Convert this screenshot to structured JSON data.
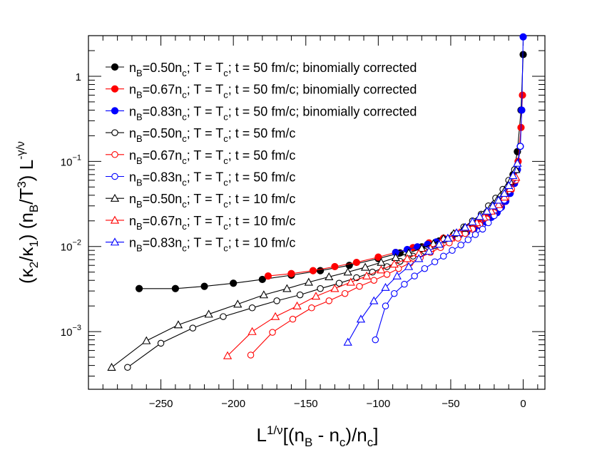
{
  "chart_data": {
    "type": "scatter",
    "title": "",
    "x_axis": {
      "label": {
        "pre": "L",
        "sup1": "1/ν",
        "mid": "[(n",
        "sub1": "B",
        "mid2": " - n",
        "sub2": "c",
        "mid3": ")/n",
        "sub3": "c",
        "post": "]"
      },
      "range": [
        -300,
        15
      ],
      "ticks": [
        -250,
        -200,
        -150,
        -100,
        -50,
        0
      ],
      "tick_labels": [
        "−250",
        "−200",
        "−150",
        "−100",
        "−50",
        "0"
      ]
    },
    "y_axis": {
      "label": {
        "p1": "(κ",
        "s1": "2",
        "p2": "/κ",
        "s2": "1",
        "p3": ") (n",
        "s3": "B",
        "p4": "/T",
        "sup1": "3",
        "p5": ") L",
        "sup2": "-γ/ν"
      },
      "scale": "log",
      "range": [
        0.00021,
        3.0
      ],
      "ticks": [
        0.001,
        0.01,
        0.1,
        1
      ],
      "tick_labels": [
        {
          "base": "10",
          "exp": "−3"
        },
        {
          "base": "10",
          "exp": "−2"
        },
        {
          "base": "10",
          "exp": "−1"
        },
        {
          "base": "1",
          "exp": ""
        }
      ]
    },
    "series": [
      {
        "name": "n_B=0.50n_c; T = T_c; t = 50 fm/c; binomially corrected",
        "legend": {
          "nb": "0.50",
          "t": "50",
          "tail": " fm/c; binomially corrected"
        },
        "color": "#000000",
        "marker": "circle-filled",
        "x": [
          -265,
          -240,
          -220,
          -200,
          -180,
          -160,
          -140,
          -120,
          -100,
          -85,
          -70,
          -58,
          -48,
          -40,
          -33,
          -27,
          -21,
          -16,
          -11,
          -7,
          -4,
          -1.5,
          0
        ],
        "y": [
          0.0032,
          0.0032,
          0.0034,
          0.0037,
          0.0041,
          0.0046,
          0.0052,
          0.006,
          0.0072,
          0.0084,
          0.0099,
          0.0116,
          0.0137,
          0.016,
          0.0188,
          0.022,
          0.027,
          0.034,
          0.046,
          0.07,
          0.13,
          0.4,
          1.8
        ]
      },
      {
        "name": "n_B=0.67n_c; T = T_c; t = 50 fm/c; binomially corrected",
        "legend": {
          "nb": "0.67",
          "t": "50",
          "tail": " fm/c; binomially corrected"
        },
        "color": "#ff0000",
        "marker": "circle-filled",
        "x": [
          -176,
          -160,
          -145,
          -130,
          -115,
          -100,
          -88,
          -76,
          -65,
          -55,
          -46,
          -38,
          -31,
          -25,
          -19,
          -14,
          -10,
          -6,
          -3.5,
          -1.5,
          -0.5
        ],
        "y": [
          0.0045,
          0.0048,
          0.0052,
          0.0058,
          0.0065,
          0.0075,
          0.0085,
          0.0097,
          0.011,
          0.0125,
          0.0143,
          0.0165,
          0.019,
          0.022,
          0.027,
          0.033,
          0.042,
          0.06,
          0.1,
          0.25,
          0.6
        ]
      },
      {
        "name": "n_B=0.83n_c; T = T_c; t = 50 fm/c; binomially corrected",
        "legend": {
          "nb": "0.83",
          "t": "50",
          "tail": " fm/c; binomially corrected"
        },
        "color": "#0000ff",
        "marker": "circle-filled",
        "x": [
          -88,
          -80,
          -73,
          -66,
          -60,
          -54,
          -49,
          -44,
          -39,
          -34,
          -30,
          -26,
          -22,
          -18,
          -15,
          -12,
          -9,
          -6,
          -4,
          -2,
          -1,
          0
        ],
        "y": [
          0.0085,
          0.0092,
          0.0099,
          0.0106,
          0.0113,
          0.012,
          0.0128,
          0.0137,
          0.0147,
          0.016,
          0.0175,
          0.0195,
          0.022,
          0.025,
          0.029,
          0.034,
          0.042,
          0.055,
          0.08,
          0.15,
          0.4,
          2.9
        ]
      },
      {
        "name": "n_B=0.50n_c; T = T_c; t = 50 fm/c",
        "legend": {
          "nb": "0.50",
          "t": "50",
          "tail": " fm/c"
        },
        "color": "#000000",
        "marker": "circle-open",
        "x": [
          -273,
          -250,
          -228,
          -207,
          -187,
          -170,
          -154,
          -140,
          -127,
          -115,
          -104,
          -94,
          -85,
          -76,
          -68,
          -61,
          -54,
          -47,
          -41,
          -35,
          -29,
          -24,
          -19,
          -14,
          -10,
          -6
        ],
        "y": [
          0.00038,
          0.00073,
          0.0011,
          0.0015,
          0.0019,
          0.0023,
          0.0027,
          0.0032,
          0.0037,
          0.0043,
          0.005,
          0.0058,
          0.0067,
          0.0077,
          0.0088,
          0.0102,
          0.012,
          0.014,
          0.017,
          0.02,
          0.024,
          0.03,
          0.037,
          0.047,
          0.06,
          0.08
        ]
      },
      {
        "name": "n_B=0.67n_c; T = T_c; t = 50 fm/c",
        "legend": {
          "nb": "0.67",
          "t": "50",
          "tail": " fm/c"
        },
        "color": "#ff0000",
        "marker": "circle-open",
        "x": [
          -188,
          -173,
          -159,
          -146,
          -134,
          -123,
          -113,
          -103,
          -94,
          -86,
          -78,
          -71,
          -64,
          -57,
          -51,
          -45,
          -40,
          -35,
          -30,
          -25,
          -20,
          -16,
          -12,
          -8,
          -5
        ],
        "y": [
          0.00053,
          0.00098,
          0.0014,
          0.0019,
          0.0023,
          0.0028,
          0.0034,
          0.004,
          0.0047,
          0.0055,
          0.0064,
          0.0074,
          0.0085,
          0.0097,
          0.011,
          0.0125,
          0.0142,
          0.016,
          0.018,
          0.021,
          0.025,
          0.03,
          0.037,
          0.047,
          0.06
        ]
      },
      {
        "name": "n_B=0.83n_c; T = T_c; t = 50 fm/c",
        "legend": {
          "nb": "0.83",
          "t": "50",
          "tail": " fm/c"
        },
        "color": "#0000ff",
        "marker": "circle-open",
        "x": [
          -102,
          -95,
          -89,
          -82,
          -75,
          -68,
          -61,
          -55,
          -49,
          -43,
          -38,
          -33,
          -28,
          -24,
          -20,
          -16,
          -13,
          -10,
          -7,
          -4,
          -2
        ],
        "y": [
          0.0008,
          0.002,
          0.0028,
          0.0036,
          0.0045,
          0.0055,
          0.0066,
          0.0077,
          0.009,
          0.0104,
          0.012,
          0.0138,
          0.016,
          0.019,
          0.023,
          0.028,
          0.035,
          0.045,
          0.062,
          0.09,
          0.15
        ]
      },
      {
        "name": "n_B=0.50n_c; T = T_c; t = 10 fm/c",
        "legend": {
          "nb": "0.50",
          "t": "10",
          "tail": " fm/c"
        },
        "color": "#000000",
        "marker": "triangle-open",
        "x": [
          -284,
          -260,
          -238,
          -217,
          -197,
          -179,
          -163,
          -148,
          -134,
          -121,
          -109,
          -98,
          -88,
          -79,
          -70,
          -62,
          -55,
          -48,
          -41,
          -35,
          -29,
          -23,
          -18,
          -13,
          -9,
          -5
        ],
        "y": [
          0.00038,
          0.00078,
          0.0012,
          0.0016,
          0.0021,
          0.0027,
          0.0032,
          0.0038,
          0.0044,
          0.005,
          0.0057,
          0.0065,
          0.0074,
          0.0084,
          0.0095,
          0.0108,
          0.0124,
          0.0142,
          0.0163,
          0.019,
          0.023,
          0.028,
          0.035,
          0.045,
          0.058,
          0.08
        ]
      },
      {
        "name": "n_B=0.67n_c; T = T_c; t = 10 fm/c",
        "legend": {
          "nb": "0.67",
          "t": "10",
          "tail": " fm/c"
        },
        "color": "#ff0000",
        "marker": "triangle-open",
        "x": [
          -204,
          -187,
          -171,
          -156,
          -143,
          -130,
          -119,
          -108,
          -98,
          -89,
          -80,
          -72,
          -64,
          -57,
          -50,
          -44,
          -38,
          -32,
          -27,
          -22,
          -17,
          -13,
          -9,
          -5
        ],
        "y": [
          0.00052,
          0.001,
          0.0015,
          0.002,
          0.0026,
          0.0032,
          0.0038,
          0.0045,
          0.0053,
          0.0062,
          0.0072,
          0.0083,
          0.0095,
          0.011,
          0.0126,
          0.0145,
          0.0166,
          0.019,
          0.022,
          0.026,
          0.031,
          0.038,
          0.048,
          0.065
        ]
      },
      {
        "name": "n_B=0.83n_c; T = T_c; t = 10 fm/c",
        "legend": {
          "nb": "0.83",
          "t": "10",
          "tail": " fm/c"
        },
        "color": "#0000ff",
        "marker": "triangle-open",
        "x": [
          -121,
          -112,
          -103,
          -95,
          -87,
          -79,
          -72,
          -65,
          -58,
          -52,
          -46,
          -40,
          -35,
          -30,
          -25,
          -21,
          -17,
          -13,
          -10,
          -7,
          -4
        ],
        "y": [
          0.00075,
          0.0014,
          0.0023,
          0.0033,
          0.0045,
          0.0058,
          0.0072,
          0.0088,
          0.0106,
          0.0125,
          0.0145,
          0.0168,
          0.0195,
          0.0225,
          0.026,
          0.03,
          0.035,
          0.042,
          0.052,
          0.068,
          0.095
        ]
      }
    ]
  }
}
